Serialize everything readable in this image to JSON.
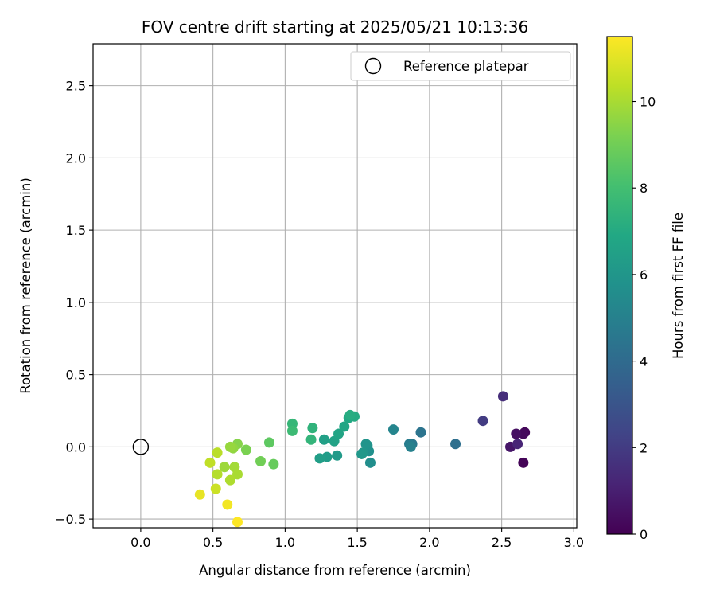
{
  "chart_data": {
    "type": "scatter",
    "title": "FOV centre drift starting at 2025/05/21 10:13:36",
    "xlabel": "Angular distance from reference (arcmin)",
    "ylabel": "Rotation from reference (arcmin)",
    "xlim": [
      -0.33,
      3.02
    ],
    "ylim": [
      -0.56,
      2.79
    ],
    "xticks": [
      0.0,
      0.5,
      1.0,
      1.5,
      2.0,
      2.5,
      3.0
    ],
    "xtick_labels": [
      "0.0",
      "0.5",
      "1.0",
      "1.5",
      "2.0",
      "2.5",
      "3.0"
    ],
    "yticks": [
      -0.5,
      0.0,
      0.5,
      1.0,
      1.5,
      2.0,
      2.5
    ],
    "ytick_labels": [
      "−0.5",
      "0.0",
      "0.5",
      "1.0",
      "1.5",
      "2.0",
      "2.5"
    ],
    "grid": true,
    "legend": {
      "placement": "top-right",
      "entries": [
        "Reference platepar"
      ]
    },
    "reference_point": {
      "x": 0.0,
      "y": 0.0,
      "marker": "open-circle",
      "color": "#000000"
    },
    "colorbar": {
      "label": "Hours from first FF file",
      "colormap": "viridis",
      "range": [
        0,
        11.5
      ],
      "ticks": [
        0,
        2,
        4,
        6,
        8,
        10
      ],
      "tick_labels": [
        "0",
        "2",
        "4",
        "6",
        "8",
        "10"
      ]
    },
    "color_by": "hours",
    "points": [
      {
        "x": 2.65,
        "y": -0.11,
        "hours": 0.1
      },
      {
        "x": 2.66,
        "y": 0.1,
        "hours": 0.2
      },
      {
        "x": 2.65,
        "y": 0.09,
        "hours": 0.3
      },
      {
        "x": 2.6,
        "y": 0.09,
        "hours": 0.5
      },
      {
        "x": 2.56,
        "y": 0.0,
        "hours": 0.7
      },
      {
        "x": 2.61,
        "y": 0.02,
        "hours": 1.2
      },
      {
        "x": 2.51,
        "y": 0.35,
        "hours": 1.5
      },
      {
        "x": 2.37,
        "y": 0.18,
        "hours": 2.0
      },
      {
        "x": 2.18,
        "y": 0.02,
        "hours": 4.2
      },
      {
        "x": 1.94,
        "y": 0.1,
        "hours": 4.4
      },
      {
        "x": 1.88,
        "y": 0.02,
        "hours": 4.6
      },
      {
        "x": 1.86,
        "y": 0.02,
        "hours": 4.8
      },
      {
        "x": 1.87,
        "y": 0.0,
        "hours": 5.0
      },
      {
        "x": 1.75,
        "y": 0.12,
        "hours": 5.2
      },
      {
        "x": 1.59,
        "y": -0.11,
        "hours": 5.6
      },
      {
        "x": 1.58,
        "y": -0.03,
        "hours": 5.7
      },
      {
        "x": 1.57,
        "y": 0.01,
        "hours": 5.8
      },
      {
        "x": 1.56,
        "y": 0.02,
        "hours": 5.9
      },
      {
        "x": 1.54,
        "y": -0.04,
        "hours": 6.0
      },
      {
        "x": 1.53,
        "y": -0.05,
        "hours": 6.1
      },
      {
        "x": 1.36,
        "y": -0.06,
        "hours": 6.2
      },
      {
        "x": 1.29,
        "y": -0.07,
        "hours": 6.3
      },
      {
        "x": 1.24,
        "y": -0.08,
        "hours": 6.4
      },
      {
        "x": 1.27,
        "y": 0.05,
        "hours": 6.5
      },
      {
        "x": 1.34,
        "y": 0.04,
        "hours": 6.6
      },
      {
        "x": 1.37,
        "y": 0.09,
        "hours": 6.7
      },
      {
        "x": 1.41,
        "y": 0.14,
        "hours": 6.8
      },
      {
        "x": 1.44,
        "y": 0.2,
        "hours": 6.9
      },
      {
        "x": 1.48,
        "y": 0.21,
        "hours": 7.0
      },
      {
        "x": 1.45,
        "y": 0.22,
        "hours": 7.1
      },
      {
        "x": 1.19,
        "y": 0.13,
        "hours": 7.4
      },
      {
        "x": 1.18,
        "y": 0.05,
        "hours": 7.5
      },
      {
        "x": 1.05,
        "y": 0.16,
        "hours": 7.6
      },
      {
        "x": 1.05,
        "y": 0.11,
        "hours": 7.8
      },
      {
        "x": 0.89,
        "y": 0.03,
        "hours": 8.6
      },
      {
        "x": 0.92,
        "y": -0.12,
        "hours": 8.8
      },
      {
        "x": 0.83,
        "y": -0.1,
        "hours": 9.0
      },
      {
        "x": 0.73,
        "y": -0.02,
        "hours": 9.2
      },
      {
        "x": 0.67,
        "y": 0.02,
        "hours": 9.4
      },
      {
        "x": 0.64,
        "y": -0.01,
        "hours": 9.6
      },
      {
        "x": 0.62,
        "y": 0.0,
        "hours": 9.7
      },
      {
        "x": 0.58,
        "y": -0.14,
        "hours": 9.8
      },
      {
        "x": 0.65,
        "y": -0.14,
        "hours": 9.9
      },
      {
        "x": 0.67,
        "y": -0.19,
        "hours": 10.0
      },
      {
        "x": 0.62,
        "y": -0.23,
        "hours": 10.1
      },
      {
        "x": 0.53,
        "y": -0.19,
        "hours": 10.2
      },
      {
        "x": 0.53,
        "y": -0.04,
        "hours": 10.3
      },
      {
        "x": 0.48,
        "y": -0.11,
        "hours": 10.4
      },
      {
        "x": 0.52,
        "y": -0.29,
        "hours": 10.6
      },
      {
        "x": 0.41,
        "y": -0.33,
        "hours": 11.1
      },
      {
        "x": 0.6,
        "y": -0.4,
        "hours": 11.3
      },
      {
        "x": 0.67,
        "y": -0.52,
        "hours": 11.5
      }
    ]
  }
}
